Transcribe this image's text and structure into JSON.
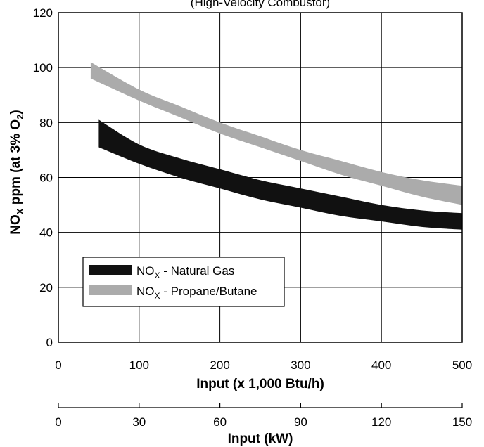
{
  "chart_data": {
    "type": "area",
    "subtitle": "(High-Velocity Combustor)",
    "xlabel": "Input (x 1,000 Btu/h)",
    "x2label": "Input (kW)",
    "ylabel": "NO_X ppm (at 3% O_2)",
    "xlim": [
      0,
      500
    ],
    "ylim": [
      0,
      120
    ],
    "xticks": [
      "0",
      "100",
      "200",
      "300",
      "400",
      "500"
    ],
    "yticks": [
      "0",
      "20",
      "40",
      "60",
      "80",
      "100",
      "120"
    ],
    "x2lim": [
      0,
      150
    ],
    "x2ticks": [
      "0",
      "30",
      "60",
      "90",
      "120",
      "150"
    ],
    "grid": true,
    "legend_position": "lower-left",
    "series": [
      {
        "name": "NO_X - Natural Gas",
        "color": "#111111",
        "x": [
          50,
          100,
          150,
          200,
          250,
          300,
          350,
          400,
          450,
          500
        ],
        "upper": [
          81,
          72,
          67,
          63,
          59,
          56,
          53,
          50,
          48,
          47
        ],
        "lower": [
          71,
          65,
          60,
          56,
          52,
          49,
          46,
          44,
          42,
          41
        ]
      },
      {
        "name": "NO_X - Propane/Butane",
        "color": "#ababab",
        "x": [
          40,
          100,
          150,
          200,
          250,
          300,
          350,
          400,
          450,
          500
        ],
        "upper": [
          102,
          92,
          86,
          80,
          75,
          70,
          66,
          62,
          59,
          57
        ],
        "lower": [
          96,
          88,
          82,
          76,
          71,
          66,
          61,
          57,
          53,
          50
        ]
      }
    ]
  }
}
